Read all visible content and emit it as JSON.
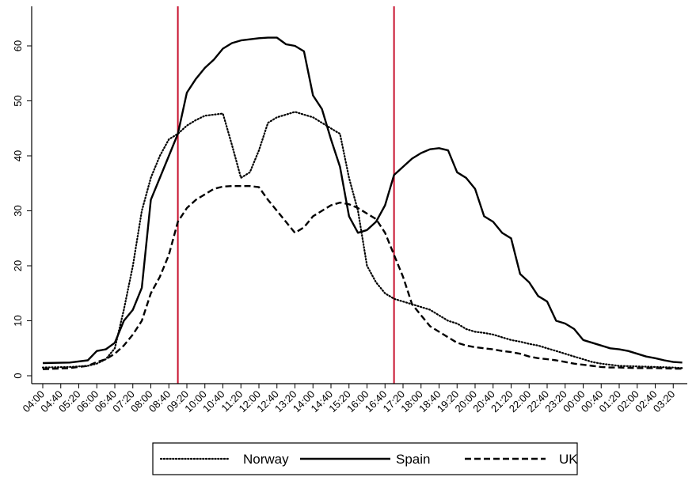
{
  "chart_data": {
    "type": "line",
    "title": "",
    "xlabel": "",
    "ylabel": "",
    "ylim": [
      0,
      65
    ],
    "yticks": [
      0,
      10,
      20,
      30,
      40,
      50,
      60
    ],
    "grid": false,
    "legend_position": "bottom",
    "x_tick_labels": [
      "04:00",
      "04:40",
      "05:20",
      "06:00",
      "06:40",
      "07:20",
      "08:00",
      "08:40",
      "09:20",
      "10:00",
      "10:40",
      "11:20",
      "12:00",
      "12:40",
      "13:20",
      "14:00",
      "14:40",
      "15:20",
      "16:00",
      "16:40",
      "17:20",
      "18:00",
      "18:40",
      "19:20",
      "20:00",
      "20:40",
      "21:20",
      "22:00",
      "22:40",
      "23:20",
      "00:00",
      "00:40",
      "01:20",
      "02:00",
      "02:40",
      "03:20"
    ],
    "vertical_lines": [
      {
        "x": "09:00",
        "color": "#c8102e"
      },
      {
        "x": "17:00",
        "color": "#c8102e"
      }
    ],
    "series": [
      {
        "name": "Norway",
        "style": "dotted",
        "color": "#000000",
        "points": [
          [
            "04:00",
            1.5
          ],
          [
            "05:00",
            1.6
          ],
          [
            "05:40",
            1.8
          ],
          [
            "06:00",
            2.2
          ],
          [
            "06:20",
            3
          ],
          [
            "06:40",
            5
          ],
          [
            "07:00",
            12
          ],
          [
            "07:20",
            20
          ],
          [
            "07:40",
            30
          ],
          [
            "08:00",
            36
          ],
          [
            "08:20",
            40
          ],
          [
            "08:40",
            43
          ],
          [
            "09:00",
            44
          ],
          [
            "09:20",
            45.5
          ],
          [
            "09:40",
            46.5
          ],
          [
            "10:00",
            47.3
          ],
          [
            "10:20",
            47.5
          ],
          [
            "10:40",
            47.7
          ],
          [
            "11:00",
            42
          ],
          [
            "11:20",
            36
          ],
          [
            "11:40",
            37
          ],
          [
            "12:00",
            41
          ],
          [
            "12:20",
            46
          ],
          [
            "12:40",
            47
          ],
          [
            "13:00",
            47.5
          ],
          [
            "13:20",
            48
          ],
          [
            "13:40",
            47.5
          ],
          [
            "14:00",
            47
          ],
          [
            "14:20",
            46
          ],
          [
            "14:40",
            45
          ],
          [
            "15:00",
            44
          ],
          [
            "15:20",
            36
          ],
          [
            "15:40",
            30
          ],
          [
            "16:00",
            20
          ],
          [
            "16:20",
            17
          ],
          [
            "16:40",
            15
          ],
          [
            "17:00",
            14
          ],
          [
            "17:20",
            13.5
          ],
          [
            "17:40",
            13
          ],
          [
            "18:00",
            12.5
          ],
          [
            "18:20",
            12
          ],
          [
            "18:40",
            11
          ],
          [
            "19:00",
            10
          ],
          [
            "19:20",
            9.5
          ],
          [
            "19:40",
            8.5
          ],
          [
            "20:00",
            8
          ],
          [
            "20:20",
            7.8
          ],
          [
            "20:40",
            7.5
          ],
          [
            "21:00",
            7
          ],
          [
            "21:20",
            6.5
          ],
          [
            "21:40",
            6.2
          ],
          [
            "22:00",
            5.8
          ],
          [
            "22:20",
            5.5
          ],
          [
            "22:40",
            5
          ],
          [
            "23:00",
            4.5
          ],
          [
            "23:20",
            4
          ],
          [
            "23:40",
            3.5
          ],
          [
            "00:00",
            3
          ],
          [
            "00:20",
            2.5
          ],
          [
            "00:40",
            2.2
          ],
          [
            "01:00",
            2
          ],
          [
            "01:20",
            1.8
          ],
          [
            "02:00",
            1.7
          ],
          [
            "02:40",
            1.6
          ],
          [
            "03:20",
            1.5
          ],
          [
            "03:40",
            1.4
          ]
        ]
      },
      {
        "name": "Spain",
        "style": "solid",
        "color": "#000000",
        "points": [
          [
            "04:00",
            2.3
          ],
          [
            "05:00",
            2.4
          ],
          [
            "05:40",
            2.8
          ],
          [
            "06:00",
            4.5
          ],
          [
            "06:20",
            4.8
          ],
          [
            "06:40",
            6
          ],
          [
            "07:00",
            10
          ],
          [
            "07:20",
            12
          ],
          [
            "07:40",
            16
          ],
          [
            "08:00",
            32
          ],
          [
            "08:20",
            36
          ],
          [
            "08:40",
            40
          ],
          [
            "09:00",
            44
          ],
          [
            "09:20",
            51.5
          ],
          [
            "09:40",
            54
          ],
          [
            "10:00",
            56
          ],
          [
            "10:20",
            57.5
          ],
          [
            "10:40",
            59.5
          ],
          [
            "11:00",
            60.5
          ],
          [
            "11:20",
            61
          ],
          [
            "11:40",
            61.2
          ],
          [
            "12:00",
            61.4
          ],
          [
            "12:20",
            61.5
          ],
          [
            "12:40",
            61.5
          ],
          [
            "13:00",
            60.3
          ],
          [
            "13:20",
            60
          ],
          [
            "13:40",
            59
          ],
          [
            "14:00",
            51
          ],
          [
            "14:20",
            48.5
          ],
          [
            "14:40",
            43
          ],
          [
            "15:00",
            38
          ],
          [
            "15:20",
            29
          ],
          [
            "15:40",
            26
          ],
          [
            "16:00",
            26.5
          ],
          [
            "16:20",
            28
          ],
          [
            "16:40",
            31
          ],
          [
            "17:00",
            36.5
          ],
          [
            "17:20",
            38
          ],
          [
            "17:40",
            39.5
          ],
          [
            "18:00",
            40.5
          ],
          [
            "18:20",
            41.2
          ],
          [
            "18:40",
            41.4
          ],
          [
            "19:00",
            41
          ],
          [
            "19:20",
            37
          ],
          [
            "19:40",
            36
          ],
          [
            "20:00",
            34
          ],
          [
            "20:20",
            29
          ],
          [
            "20:40",
            28
          ],
          [
            "21:00",
            26
          ],
          [
            "21:20",
            25
          ],
          [
            "21:40",
            18.5
          ],
          [
            "22:00",
            17
          ],
          [
            "22:20",
            14.5
          ],
          [
            "22:40",
            13.5
          ],
          [
            "23:00",
            10
          ],
          [
            "23:20",
            9.5
          ],
          [
            "23:40",
            8.5
          ],
          [
            "00:00",
            6.5
          ],
          [
            "00:20",
            6
          ],
          [
            "00:40",
            5.5
          ],
          [
            "01:00",
            5
          ],
          [
            "01:20",
            4.8
          ],
          [
            "01:40",
            4.5
          ],
          [
            "02:00",
            4
          ],
          [
            "02:20",
            3.5
          ],
          [
            "02:40",
            3.2
          ],
          [
            "03:00",
            2.8
          ],
          [
            "03:20",
            2.5
          ],
          [
            "03:40",
            2.4
          ]
        ]
      },
      {
        "name": "UK",
        "style": "dashed",
        "color": "#000000",
        "points": [
          [
            "04:00",
            1.2
          ],
          [
            "05:00",
            1.4
          ],
          [
            "05:40",
            1.8
          ],
          [
            "06:00",
            2.5
          ],
          [
            "06:20",
            3
          ],
          [
            "06:40",
            4
          ],
          [
            "07:00",
            5.5
          ],
          [
            "07:20",
            7.5
          ],
          [
            "07:40",
            10
          ],
          [
            "08:00",
            15
          ],
          [
            "08:20",
            18
          ],
          [
            "08:40",
            22
          ],
          [
            "09:00",
            28
          ],
          [
            "09:20",
            30.5
          ],
          [
            "09:40",
            32
          ],
          [
            "10:00",
            33
          ],
          [
            "10:20",
            34
          ],
          [
            "10:40",
            34.4
          ],
          [
            "11:00",
            34.5
          ],
          [
            "11:20",
            34.5
          ],
          [
            "11:40",
            34.5
          ],
          [
            "12:00",
            34.3
          ],
          [
            "12:20",
            32
          ],
          [
            "12:40",
            30
          ],
          [
            "13:00",
            28
          ],
          [
            "13:20",
            26
          ],
          [
            "13:40",
            27
          ],
          [
            "14:00",
            29
          ],
          [
            "14:20",
            30
          ],
          [
            "14:40",
            31
          ],
          [
            "15:00",
            31.5
          ],
          [
            "15:20",
            31.2
          ],
          [
            "15:40",
            30.5
          ],
          [
            "16:00",
            29.5
          ],
          [
            "16:20",
            28.5
          ],
          [
            "16:40",
            26
          ],
          [
            "17:00",
            22
          ],
          [
            "17:20",
            18
          ],
          [
            "17:40",
            13
          ],
          [
            "18:00",
            11
          ],
          [
            "18:20",
            9
          ],
          [
            "18:40",
            8
          ],
          [
            "19:00",
            7
          ],
          [
            "19:20",
            6
          ],
          [
            "19:40",
            5.5
          ],
          [
            "20:00",
            5.2
          ],
          [
            "20:20",
            5
          ],
          [
            "20:40",
            4.8
          ],
          [
            "21:00",
            4.5
          ],
          [
            "21:20",
            4.3
          ],
          [
            "21:40",
            4
          ],
          [
            "22:00",
            3.5
          ],
          [
            "22:20",
            3.2
          ],
          [
            "22:40",
            3
          ],
          [
            "23:00",
            2.8
          ],
          [
            "23:20",
            2.5
          ],
          [
            "23:40",
            2.2
          ],
          [
            "00:00",
            2
          ],
          [
            "00:20",
            1.8
          ],
          [
            "00:40",
            1.6
          ],
          [
            "01:00",
            1.5
          ],
          [
            "01:20",
            1.5
          ],
          [
            "02:00",
            1.4
          ],
          [
            "02:40",
            1.4
          ],
          [
            "03:20",
            1.3
          ],
          [
            "03:40",
            1.3
          ]
        ]
      }
    ]
  }
}
